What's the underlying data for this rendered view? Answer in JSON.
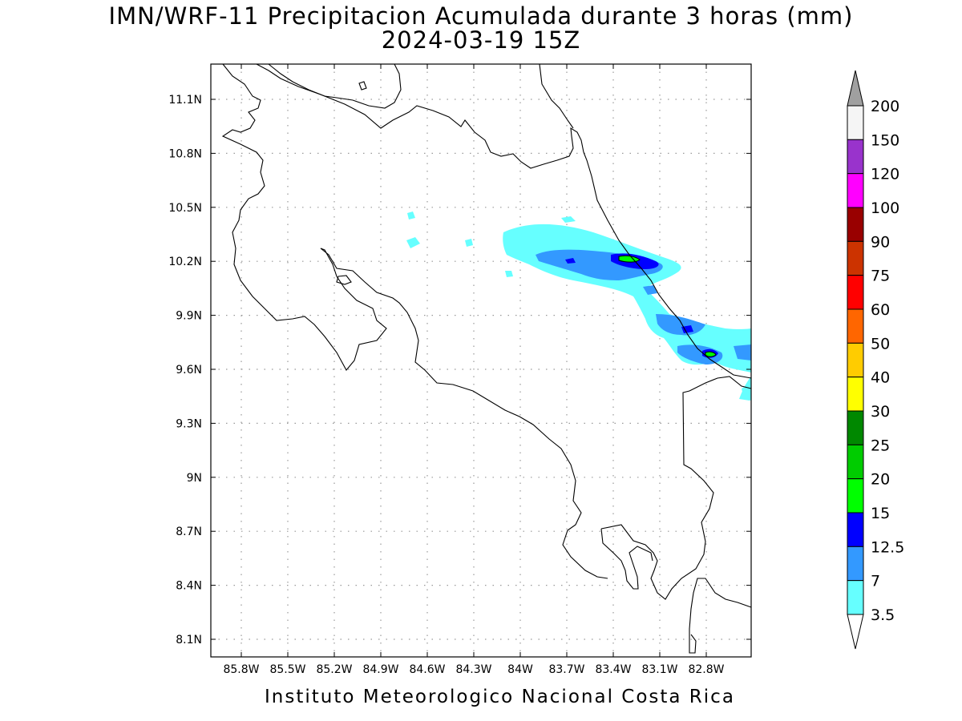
{
  "title_line1": "IMN/WRF-11 Precipitacion Acumulada durante 3 horas (mm)",
  "title_line2": "2024-03-19 15Z",
  "footer": "Instituto Meteorologico Nacional Costa Rica",
  "lon_ticks": [
    "85.8W",
    "85.5W",
    "85.2W",
    "84.9W",
    "84.6W",
    "84.3W",
    "84W",
    "83.7W",
    "83.4W",
    "83.1W",
    "82.8W"
  ],
  "lat_ticks": [
    "11.1N",
    "10.8N",
    "10.5N",
    "10.2N",
    "9.9N",
    "9.6N",
    "9.3N",
    "9N",
    "8.7N",
    "8.4N",
    "8.1N"
  ],
  "colorbar": {
    "labels": [
      "200",
      "150",
      "120",
      "100",
      "90",
      "75",
      "60",
      "50",
      "40",
      "30",
      "25",
      "20",
      "15",
      "12.5",
      "7",
      "3.5"
    ],
    "colors": [
      "#f5f5f5",
      "#9933cc",
      "#ff00ff",
      "#990000",
      "#cc3300",
      "#ff0000",
      "#ff6600",
      "#ffcc00",
      "#ffff00",
      "#008800",
      "#00cc00",
      "#00ff00",
      "#0000ff",
      "#3399ff",
      "#66ffff"
    ],
    "max_arrow_color": "#a0a0a0",
    "min_arrow_color": "#ffffff"
  }
}
